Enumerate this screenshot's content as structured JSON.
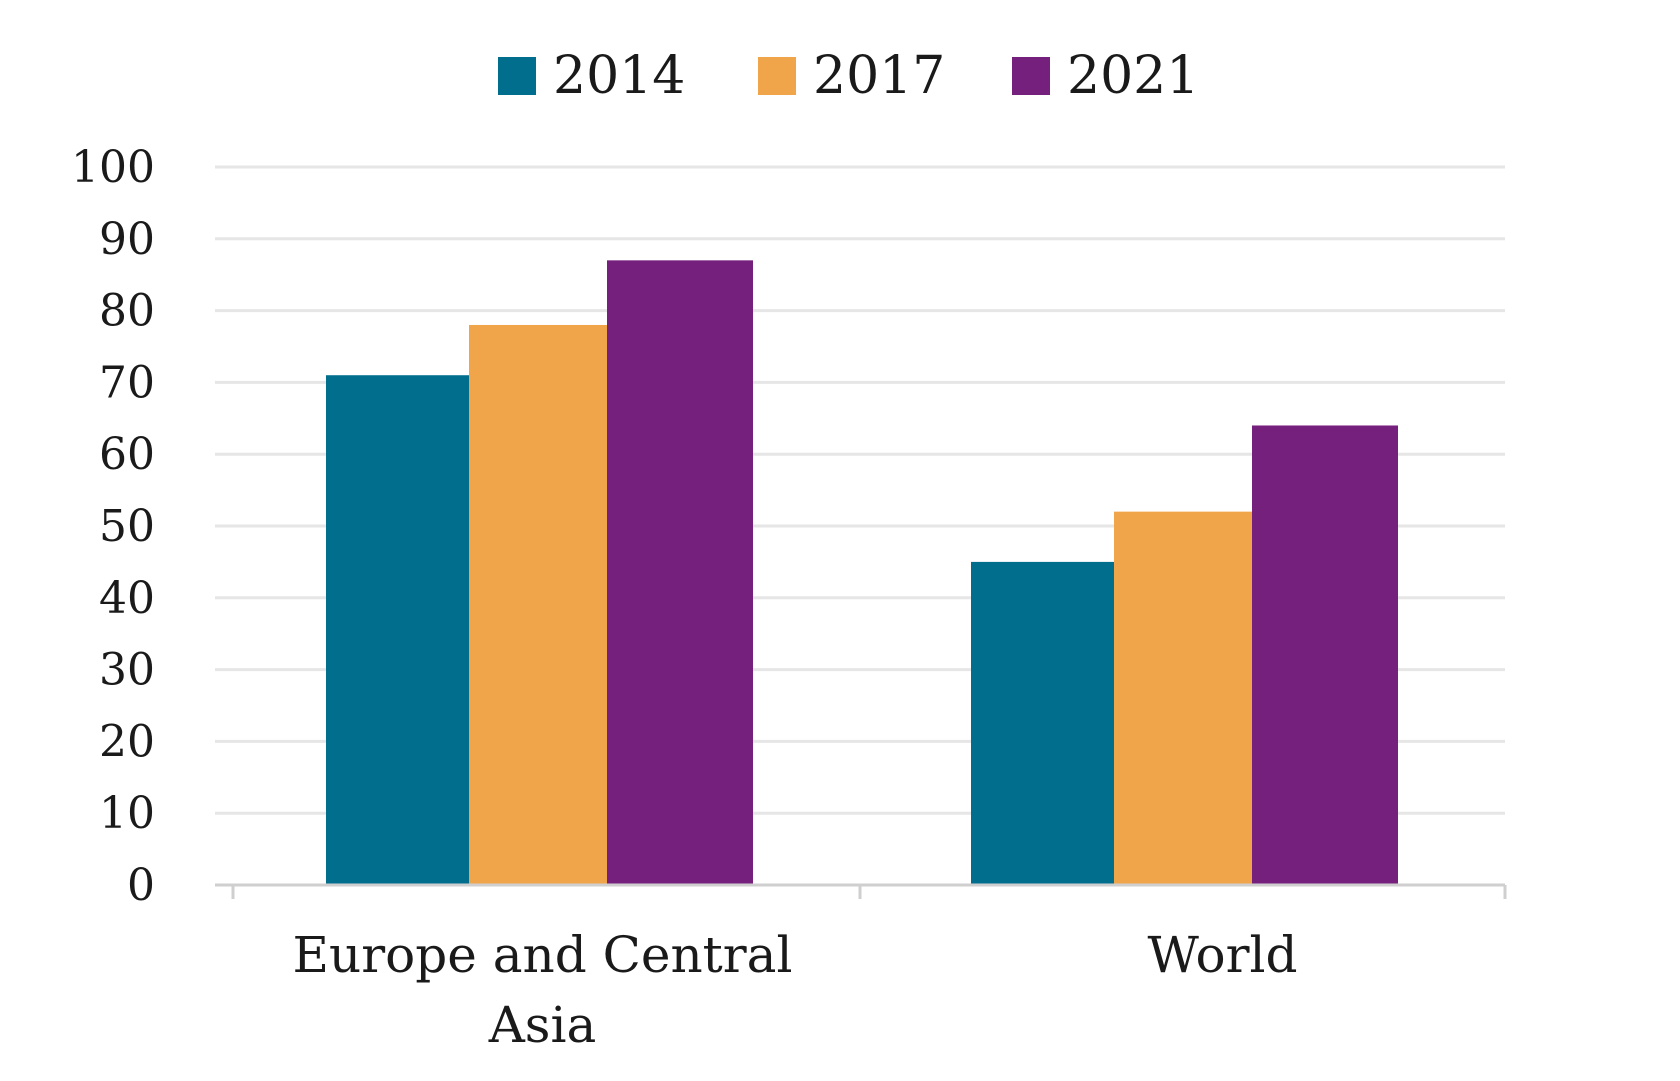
{
  "chart_data": {
    "type": "bar",
    "title": "",
    "xlabel": "",
    "ylabel": "",
    "categories": [
      [
        "Europe and Central",
        "Asia"
      ],
      [
        "World"
      ]
    ],
    "series": [
      {
        "name": "2014",
        "color": "#006e8c",
        "values": [
          71,
          45
        ]
      },
      {
        "name": "2017",
        "color": "#f0a54a",
        "values": [
          78,
          52
        ]
      },
      {
        "name": "2021",
        "color": "#76207d",
        "values": [
          87,
          64
        ]
      }
    ],
    "ylim": [
      0,
      100
    ],
    "yticks": [
      0,
      10,
      20,
      30,
      40,
      50,
      60,
      70,
      80,
      90,
      100
    ],
    "grid": true,
    "legend_position": "top-center"
  }
}
